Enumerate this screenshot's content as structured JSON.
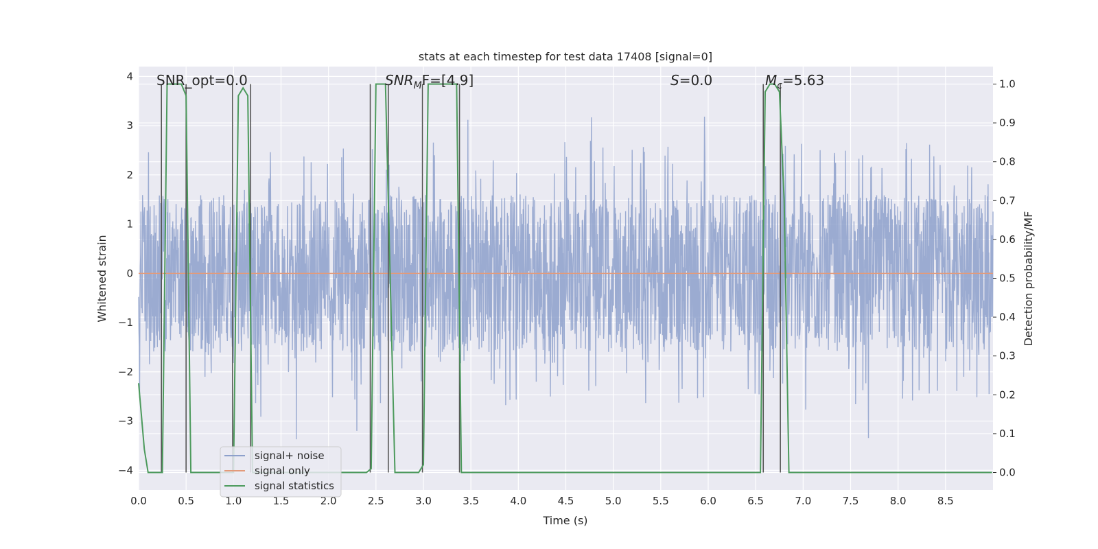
{
  "chart_data": {
    "type": "line",
    "title": "stats at each timestep for test data 17408 [signal=0]",
    "xlabel": "Time (s)",
    "ylabel": "Whitened strain",
    "y2label": "Detection probability/MF",
    "xlim": [
      0.0,
      9.0
    ],
    "ylim": [
      -4.4,
      4.2
    ],
    "y2lim": [
      -0.045,
      1.045
    ],
    "xticks": [
      "0.0",
      "0.5",
      "1.0",
      "1.5",
      "2.0",
      "2.5",
      "3.0",
      "3.5",
      "4.0",
      "4.5",
      "5.0",
      "5.5",
      "6.0",
      "6.5",
      "7.0",
      "7.5",
      "8.0",
      "8.5"
    ],
    "yticks": [
      "4",
      "3",
      "2",
      "1",
      "0",
      "−1",
      "−2",
      "−3",
      "−4"
    ],
    "y2ticks": [
      "1.0",
      "0.9",
      "0.8",
      "0.7",
      "0.6",
      "0.5",
      "0.4",
      "0.3",
      "0.2",
      "0.1",
      "0.0"
    ],
    "grid": true,
    "legend_position": "lower-left",
    "annotations": {
      "snr_opt": "SNR_opt=0.0",
      "snr_mf_main": "SNR",
      "snr_mf_sub": "M",
      "snr_mf_rest": "F=[4.9]",
      "s_var": "S",
      "s_rest": "=0.0",
      "mc_main": "M",
      "mc_sub": "c",
      "mc_rest": "=5.63"
    },
    "series": [
      {
        "name": "signal+ noise",
        "color": "#8da0cb",
        "kind": "noise",
        "x_range": [
          0.0,
          9.0
        ],
        "envelope": {
          "typical_abs": 1.6,
          "peak_max": 3.4,
          "trough_min": -3.9
        }
      },
      {
        "name": "signal only",
        "color": "#e39a7a",
        "x": [
          0.0,
          9.0
        ],
        "y": [
          0.0,
          0.0
        ]
      },
      {
        "name": "signal statistics",
        "color": "#4c9a5c",
        "axis": "right",
        "x": [
          0.0,
          0.06,
          0.1,
          0.25,
          0.3,
          0.45,
          0.5,
          0.55,
          0.7,
          0.95,
          1.0,
          1.05,
          1.1,
          1.15,
          1.2,
          1.25,
          1.4,
          2.4,
          2.45,
          2.5,
          2.6,
          2.7,
          2.9,
          2.95,
          3.0,
          3.05,
          3.1,
          3.35,
          3.4,
          3.45,
          3.6,
          4.0,
          6.55,
          6.6,
          6.65,
          6.7,
          6.75,
          6.8,
          6.85,
          6.9,
          7.0,
          8.99
        ],
        "y": [
          0.23,
          0.06,
          0.0,
          0.0,
          1.0,
          1.0,
          0.97,
          0.0,
          0.0,
          0.0,
          0.0,
          0.97,
          0.99,
          0.97,
          0.0,
          0.0,
          0.0,
          0.0,
          0.01,
          1.0,
          1.0,
          0.0,
          0.0,
          0.0,
          0.02,
          1.0,
          1.0,
          1.0,
          0.0,
          0.0,
          0.0,
          0.0,
          0.0,
          0.98,
          1.0,
          1.0,
          0.98,
          0.7,
          0.0,
          0.0,
          0.0,
          0.0
        ]
      }
    ],
    "vertical_markers": [
      0.24,
      0.5,
      0.99,
      1.18,
      2.44,
      2.63,
      2.99,
      3.38,
      6.58,
      6.76
    ]
  }
}
